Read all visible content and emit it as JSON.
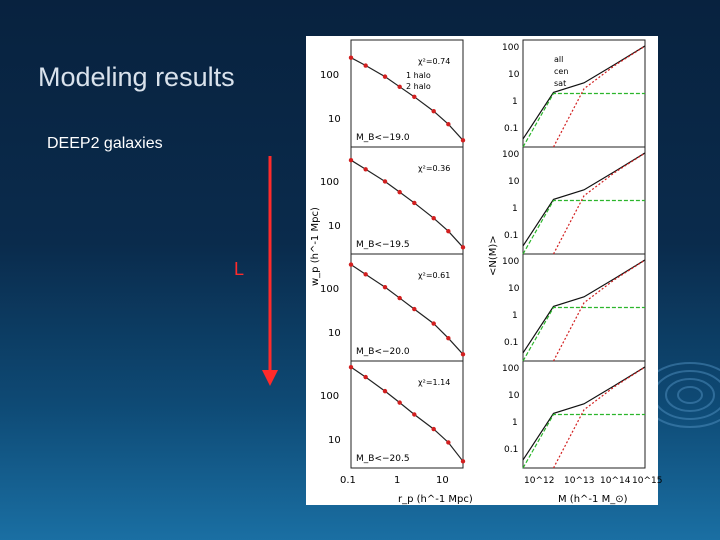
{
  "slide": {
    "title": "Modeling results",
    "subtitle": "DEEP2 galaxies",
    "arrow_label": "L",
    "accent_color": "#ff2b2b"
  },
  "figure": {
    "left_ylabel": "w_p (h^-1 Mpc)",
    "left_xlabel": "r_p (h^-1 Mpc)",
    "right_ylabel": "<N(M)>",
    "right_xlabel": "M (h^-1 M_⊙)",
    "left_xticks": [
      "0.1",
      "1",
      "10"
    ],
    "left_yticks": [
      "100",
      "10"
    ],
    "right_xticks": [
      "10^12",
      "10^13",
      "10^14",
      "10^15"
    ],
    "right_yticks": [
      "100",
      "10",
      "1",
      "0.1"
    ],
    "legend_left": [
      "1 halo",
      "2 halo"
    ],
    "legend_right": [
      "all",
      "cen",
      "sat"
    ],
    "panels": [
      {
        "chi2": "χ²=0.74",
        "mag": "M_B<−19.0"
      },
      {
        "chi2": "χ²=0.36",
        "mag": "M_B<−19.5"
      },
      {
        "chi2": "χ²=0.61",
        "mag": "M_B<−20.0"
      },
      {
        "chi2": "χ²=1.14",
        "mag": "M_B<−20.5"
      }
    ]
  },
  "chart_data": [
    {
      "type": "line",
      "title": "",
      "xlabel": "r_p (h^-1 Mpc)",
      "ylabel": "w_p (h^-1 Mpc)",
      "xscale": "log",
      "yscale": "log",
      "xlim": [
        0.1,
        20
      ],
      "ylim": [
        3,
        300
      ],
      "panels": [
        {
          "label": "M_B<−19.0",
          "x": [
            0.1,
            0.2,
            0.5,
            1,
            2,
            5,
            10,
            20
          ],
          "y": [
            140,
            100,
            62,
            40,
            26,
            14,
            8,
            4
          ]
        },
        {
          "label": "M_B<−19.5",
          "x": [
            0.1,
            0.2,
            0.5,
            1,
            2,
            5,
            10,
            20
          ],
          "y": [
            170,
            115,
            68,
            43,
            27,
            14,
            8,
            4
          ]
        },
        {
          "label": "M_B<−20.0",
          "x": [
            0.1,
            0.2,
            0.5,
            1,
            2,
            5,
            10,
            20
          ],
          "y": [
            190,
            125,
            72,
            45,
            28,
            15,
            8,
            4
          ]
        },
        {
          "label": "M_B<−20.5",
          "x": [
            0.1,
            0.2,
            0.5,
            1,
            2,
            5,
            10,
            20
          ],
          "y": [
            230,
            150,
            82,
            50,
            30,
            16,
            9,
            4
          ]
        }
      ]
    },
    {
      "type": "line",
      "title": "",
      "xlabel": "M (h^-1 M_⊙)",
      "ylabel": "<N(M)>",
      "xscale": "log",
      "yscale": "log",
      "xlim": [
        100000000000.0,
        1000000000000000.0
      ],
      "ylim": [
        0.01,
        100
      ],
      "series": [
        {
          "name": "all",
          "x": [
            100000000000.0,
            1000000000000.0,
            10000000000000.0,
            100000000000000.0,
            1000000000000000.0
          ],
          "y": [
            0.02,
            1.1,
            2.5,
            12,
            60
          ]
        },
        {
          "name": "cen",
          "x": [
            100000000000.0,
            1000000000000.0,
            10000000000000.0,
            100000000000000.0,
            1000000000000000.0
          ],
          "y": [
            0.01,
            1,
            1,
            1,
            1
          ]
        },
        {
          "name": "sat",
          "x": [
            1000000000000.0,
            10000000000000.0,
            100000000000000.0,
            1000000000000000.0
          ],
          "y": [
            0.01,
            1.5,
            11,
            59
          ]
        }
      ]
    }
  ]
}
